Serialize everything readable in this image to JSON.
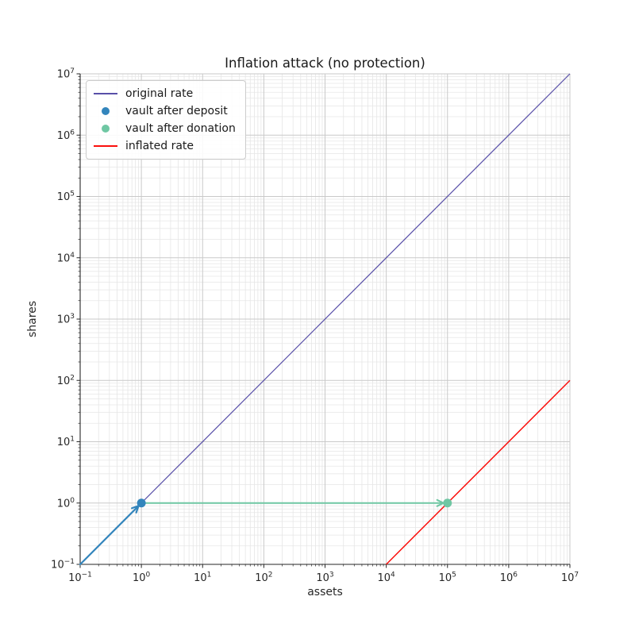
{
  "chart_data": {
    "type": "line",
    "title": "Inflation attack (no protection)",
    "xlabel": "assets",
    "ylabel": "shares",
    "xscale": "log",
    "yscale": "log",
    "xlim": [
      0.1,
      10000000
    ],
    "ylim": [
      0.1,
      10000000
    ],
    "x_tick_exponents": [
      -1,
      0,
      1,
      2,
      3,
      4,
      5,
      6,
      7
    ],
    "y_tick_exponents": [
      -1,
      0,
      1,
      2,
      3,
      4,
      5,
      6,
      7
    ],
    "grid": {
      "major": true,
      "minor": true,
      "major_color": "#c9c9c9",
      "minor_color": "#e6e6e6"
    },
    "axis_color": "#262626",
    "series": [
      {
        "name": "original rate",
        "kind": "line",
        "color": "#584fa8",
        "width": 1.2,
        "points": [
          [
            0.1,
            0.1
          ],
          [
            10000000,
            10000000
          ]
        ]
      },
      {
        "name": "deposit path arrow",
        "kind": "arrow",
        "color": "#3385bc",
        "width": 2.2,
        "points": [
          [
            0.1,
            0.1
          ],
          [
            1,
            1
          ]
        ]
      },
      {
        "name": "donation path arrow",
        "kind": "arrow",
        "color": "#6fc7a3",
        "width": 2.0,
        "points": [
          [
            1,
            1
          ],
          [
            100000,
            1
          ]
        ]
      },
      {
        "name": "inflated rate",
        "kind": "line",
        "color": "#fb0f0c",
        "width": 1.5,
        "points": [
          [
            10000,
            0.1
          ],
          [
            10000000,
            100
          ]
        ]
      },
      {
        "name": "vault after deposit",
        "kind": "scatter",
        "color": "#3385bc",
        "size": 5.5,
        "points": [
          [
            1,
            1
          ]
        ]
      },
      {
        "name": "vault after donation",
        "kind": "scatter",
        "color": "#6fc7a3",
        "size": 5.5,
        "points": [
          [
            100000,
            1
          ]
        ]
      }
    ],
    "legend": {
      "position": "upper-left",
      "entries": [
        {
          "label": "original rate",
          "marker": "line",
          "color": "#584fa8"
        },
        {
          "label": "vault after deposit",
          "marker": "dot",
          "color": "#3385bc"
        },
        {
          "label": "vault after donation",
          "marker": "dot",
          "color": "#6fc7a3"
        },
        {
          "label": "inflated rate",
          "marker": "line",
          "color": "#fb0f0c"
        }
      ]
    }
  }
}
